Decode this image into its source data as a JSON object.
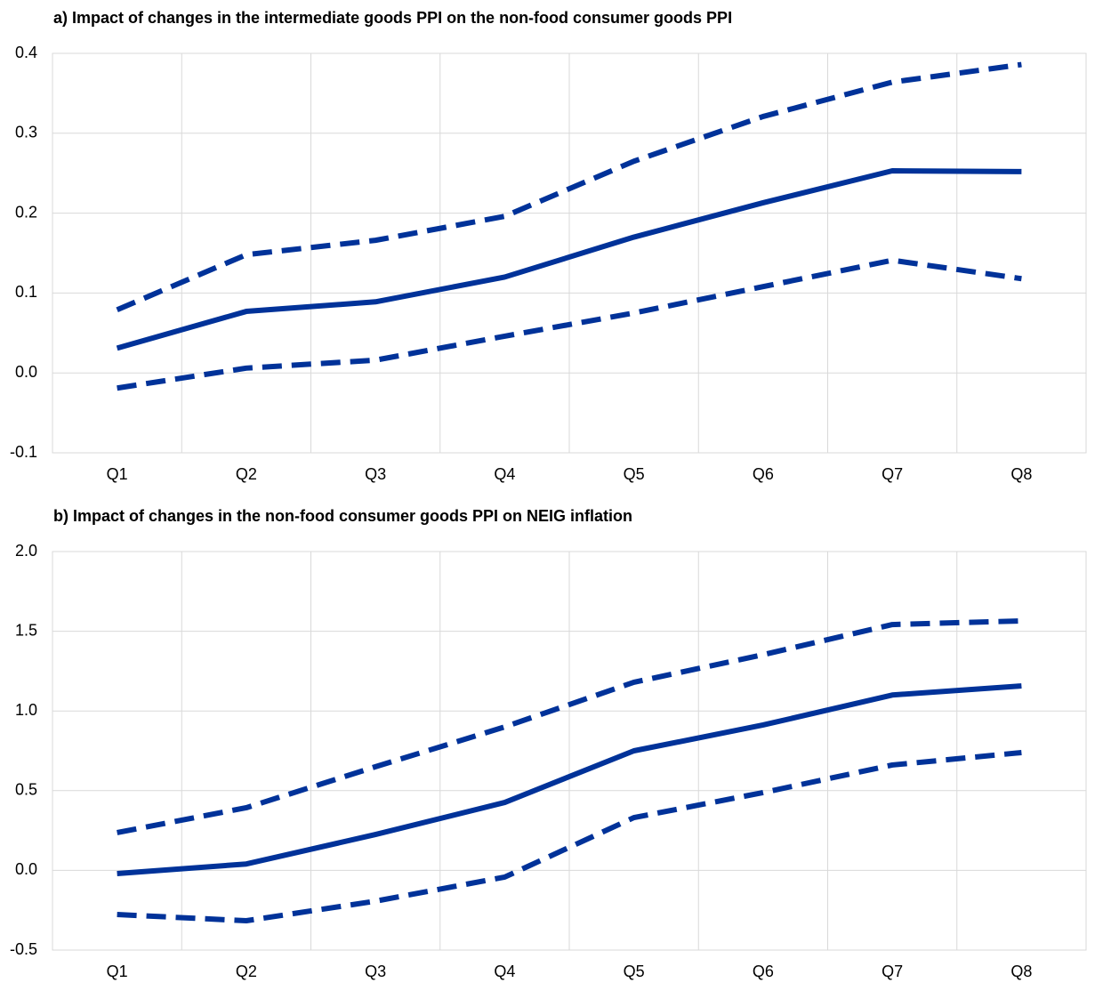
{
  "chart_data": [
    {
      "type": "line",
      "title": "a) Impact of changes in the intermediate goods PPI on the non-food consumer goods PPI",
      "categories": [
        "Q1",
        "Q2",
        "Q3",
        "Q4",
        "Q5",
        "Q6",
        "Q7",
        "Q8"
      ],
      "series": [
        {
          "color": "#003299",
          "style": "dashed",
          "values": [
            0.079,
            0.148,
            0.166,
            0.196,
            0.265,
            0.321,
            0.364,
            0.386
          ]
        },
        {
          "color": "#003299",
          "style": "solid",
          "values": [
            0.031,
            0.077,
            0.089,
            0.12,
            0.17,
            0.213,
            0.253,
            0.252
          ]
        },
        {
          "color": "#003299",
          "style": "dashed",
          "values": [
            -0.019,
            0.006,
            0.016,
            0.046,
            0.075,
            0.108,
            0.141,
            0.118
          ]
        }
      ],
      "ylim": [
        -0.1,
        0.4
      ],
      "yticks": [
        -0.1,
        {
          "value": 0,
          "label": "0.0"
        },
        0.1,
        0.2,
        0.3,
        0.4
      ],
      "grid": true
    },
    {
      "type": "line",
      "title": "b) Impact of changes in the non-food consumer goods PPI on NEIG inflation",
      "categories": [
        "Q1",
        "Q2",
        "Q3",
        "Q4",
        "Q5",
        "Q6",
        "Q7",
        "Q8"
      ],
      "series": [
        {
          "color": "#003299",
          "style": "dashed",
          "values": [
            0.237,
            0.393,
            0.65,
            0.9,
            1.18,
            1.353,
            1.542,
            1.565
          ]
        },
        {
          "color": "#003299",
          "style": "solid",
          "values": [
            -0.02,
            0.04,
            0.225,
            0.426,
            0.75,
            0.912,
            1.1,
            1.157
          ]
        },
        {
          "color": "#003299",
          "style": "dashed",
          "values": [
            -0.277,
            -0.316,
            -0.193,
            -0.042,
            0.331,
            0.488,
            0.661,
            0.739
          ]
        }
      ],
      "ylim": [
        -0.5,
        2.0
      ],
      "yticks": [
        -0.5,
        {
          "value": 0,
          "label": "0.0"
        },
        0.5,
        {
          "value": 1,
          "label": "1.0"
        },
        1.5,
        {
          "value": 2,
          "label": "2.0"
        }
      ],
      "grid": true
    }
  ]
}
